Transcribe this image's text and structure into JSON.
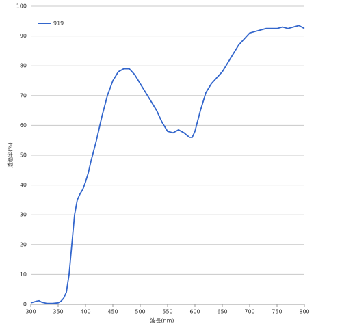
{
  "chart_data": {
    "type": "line",
    "x_label": "波長(nm)",
    "y_label": "透過率(%)",
    "x": [
      300,
      310,
      315,
      320,
      330,
      340,
      350,
      355,
      360,
      365,
      370,
      375,
      380,
      385,
      390,
      395,
      400,
      405,
      410,
      420,
      430,
      440,
      450,
      460,
      470,
      480,
      490,
      500,
      510,
      520,
      530,
      540,
      550,
      560,
      570,
      580,
      590,
      595,
      600,
      610,
      620,
      630,
      640,
      650,
      660,
      670,
      680,
      690,
      700,
      710,
      720,
      730,
      740,
      750,
      760,
      770,
      780,
      790,
      800
    ],
    "series": [
      {
        "name": "919",
        "color": "#3366cc",
        "values": [
          0.5,
          1,
          1.2,
          0.7,
          0.3,
          0.3,
          0.5,
          1,
          2,
          4,
          10,
          20,
          30,
          35,
          37,
          38.5,
          41,
          44,
          48,
          55,
          63,
          70,
          75,
          78,
          79,
          79,
          77,
          74,
          71,
          68,
          65,
          61,
          58,
          57.5,
          58.5,
          57.5,
          56,
          56,
          58,
          65,
          71,
          74,
          76,
          78,
          81,
          84,
          87,
          89,
          91,
          91.5,
          92,
          92.5,
          92.5,
          92.5,
          93,
          92.5,
          93,
          93.5,
          92.5
        ]
      }
    ],
    "xlim": [
      300,
      800
    ],
    "xticks": [
      300,
      350,
      400,
      450,
      500,
      550,
      600,
      650,
      700,
      750,
      800
    ],
    "ylim": [
      0,
      100
    ],
    "yticks": [
      0,
      10,
      20,
      30,
      40,
      50,
      60,
      70,
      80,
      90,
      100
    ],
    "grid": true,
    "legend": "top-left"
  }
}
